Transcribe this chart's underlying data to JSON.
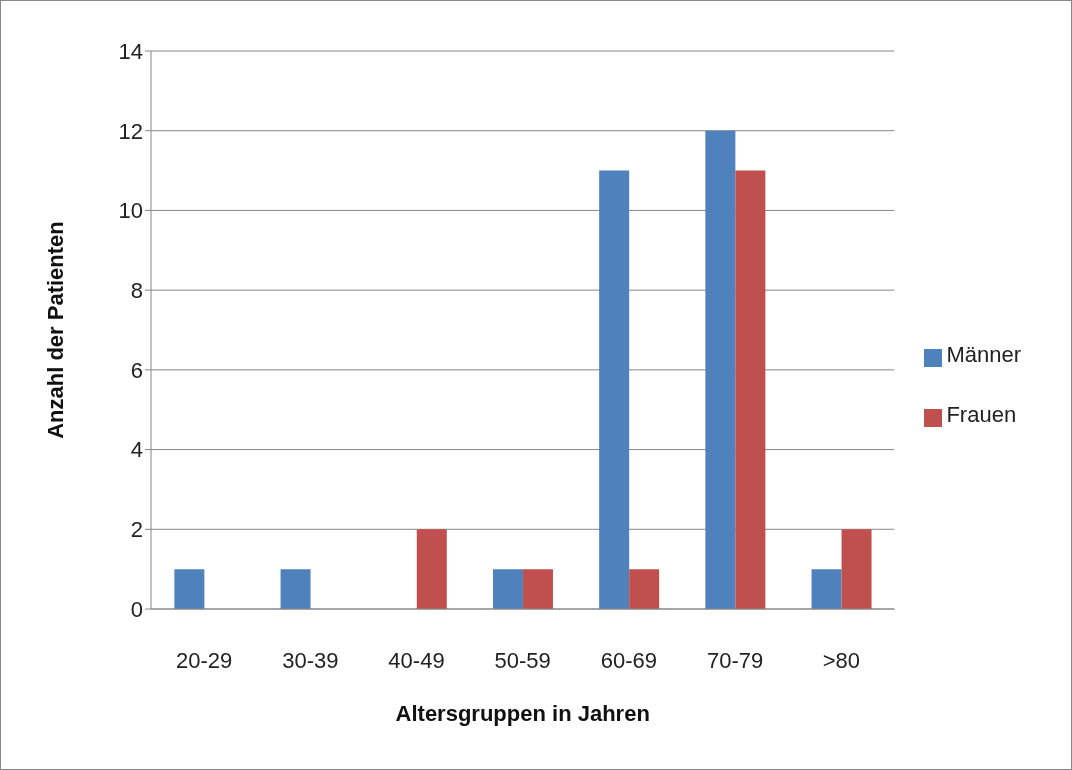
{
  "chart_data": {
    "type": "bar",
    "xlabel": "Altersgruppen in Jahren",
    "ylabel": "Anzahl der Patienten",
    "categories": [
      "20-29",
      "30-39",
      "40-49",
      "50-59",
      "60-69",
      "70-79",
      ">80"
    ],
    "series": [
      {
        "name": "Männer",
        "color": "#4f81bd",
        "values": [
          1,
          1,
          0,
          1,
          11,
          12,
          1
        ]
      },
      {
        "name": "Frauen",
        "color": "#c0504d",
        "values": [
          0,
          0,
          2,
          1,
          1,
          11,
          2
        ]
      }
    ],
    "ylim": [
      0,
      14
    ],
    "yticks": [
      0,
      2,
      4,
      6,
      8,
      10,
      12,
      14
    ],
    "grid": "y",
    "legend": "right"
  }
}
